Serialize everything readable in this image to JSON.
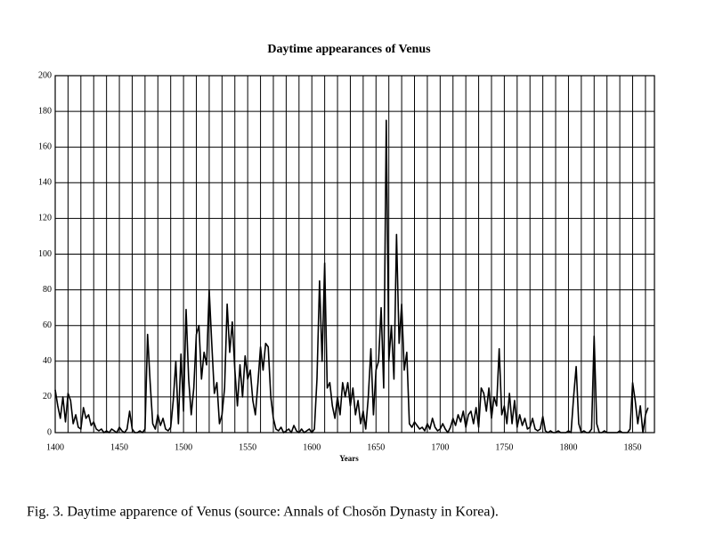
{
  "chart_data": {
    "type": "line",
    "title": "Daytime appearances of Venus",
    "x_label": "Years",
    "x": [
      1400,
      1402,
      1404,
      1406,
      1408,
      1410,
      1412,
      1414,
      1416,
      1418,
      1420,
      1422,
      1424,
      1426,
      1428,
      1430,
      1432,
      1434,
      1436,
      1438,
      1440,
      1442,
      1444,
      1446,
      1448,
      1450,
      1452,
      1454,
      1456,
      1458,
      1460,
      1462,
      1464,
      1466,
      1468,
      1470,
      1472,
      1474,
      1476,
      1478,
      1480,
      1482,
      1484,
      1486,
      1488,
      1490,
      1492,
      1494,
      1496,
      1498,
      1500,
      1502,
      1504,
      1506,
      1508,
      1510,
      1512,
      1514,
      1516,
      1518,
      1520,
      1522,
      1524,
      1526,
      1528,
      1530,
      1532,
      1534,
      1536,
      1538,
      1540,
      1542,
      1544,
      1546,
      1548,
      1550,
      1552,
      1554,
      1556,
      1558,
      1560,
      1562,
      1564,
      1566,
      1568,
      1570,
      1572,
      1574,
      1576,
      1578,
      1580,
      1582,
      1584,
      1586,
      1588,
      1590,
      1592,
      1594,
      1596,
      1598,
      1600,
      1602,
      1604,
      1606,
      1608,
      1610,
      1612,
      1614,
      1616,
      1618,
      1620,
      1622,
      1624,
      1626,
      1628,
      1630,
      1632,
      1634,
      1636,
      1638,
      1640,
      1642,
      1644,
      1646,
      1648,
      1650,
      1652,
      1654,
      1656,
      1658,
      1660,
      1662,
      1664,
      1666,
      1668,
      1670,
      1672,
      1674,
      1676,
      1678,
      1680,
      1682,
      1684,
      1686,
      1688,
      1690,
      1692,
      1694,
      1696,
      1698,
      1700,
      1702,
      1704,
      1706,
      1708,
      1710,
      1712,
      1714,
      1716,
      1718,
      1720,
      1722,
      1724,
      1726,
      1728,
      1730,
      1732,
      1734,
      1736,
      1738,
      1740,
      1742,
      1744,
      1746,
      1748,
      1750,
      1752,
      1754,
      1756,
      1758,
      1760,
      1762,
      1764,
      1766,
      1768,
      1770,
      1772,
      1774,
      1776,
      1778,
      1780,
      1782,
      1784,
      1786,
      1788,
      1790,
      1792,
      1794,
      1796,
      1798,
      1800,
      1802,
      1804,
      1806,
      1808,
      1810,
      1812,
      1814,
      1816,
      1818,
      1820,
      1822,
      1824,
      1826,
      1828,
      1830,
      1832,
      1834,
      1836,
      1838,
      1840,
      1842,
      1844,
      1846,
      1848,
      1850,
      1852,
      1854,
      1856,
      1858,
      1860,
      1862
    ],
    "values": [
      24,
      15,
      8,
      20,
      6,
      22,
      18,
      5,
      10,
      3,
      2,
      14,
      8,
      10,
      4,
      6,
      2,
      1,
      2,
      0,
      1,
      0,
      2,
      1,
      0,
      3,
      1,
      0,
      2,
      12,
      2,
      0,
      0,
      1,
      0,
      2,
      55,
      28,
      5,
      2,
      10,
      4,
      8,
      2,
      1,
      3,
      18,
      40,
      5,
      44,
      12,
      69,
      30,
      10,
      25,
      55,
      60,
      30,
      45,
      38,
      80,
      50,
      22,
      28,
      5,
      10,
      25,
      72,
      45,
      62,
      35,
      15,
      38,
      20,
      43,
      30,
      35,
      18,
      10,
      28,
      48,
      35,
      50,
      48,
      20,
      8,
      2,
      1,
      3,
      0,
      1,
      2,
      0,
      4,
      1,
      0,
      2,
      0,
      1,
      2,
      0,
      2,
      30,
      85,
      40,
      95,
      25,
      28,
      15,
      8,
      20,
      10,
      28,
      20,
      28,
      15,
      25,
      10,
      18,
      5,
      12,
      2,
      20,
      47,
      10,
      35,
      40,
      70,
      25,
      175,
      40,
      60,
      30,
      111,
      50,
      72,
      35,
      45,
      5,
      3,
      6,
      4,
      2,
      3,
      1,
      5,
      2,
      8,
      3,
      1,
      2,
      5,
      2,
      0,
      3,
      8,
      4,
      10,
      6,
      12,
      3,
      10,
      12,
      5,
      14,
      3,
      25,
      22,
      12,
      25,
      8,
      20,
      15,
      47,
      10,
      15,
      5,
      22,
      5,
      18,
      3,
      10,
      4,
      8,
      2,
      3,
      8,
      2,
      1,
      2,
      9,
      1,
      0,
      1,
      0,
      0,
      1,
      0,
      0,
      0,
      1,
      0,
      20,
      37,
      5,
      0,
      1,
      0,
      0,
      2,
      54,
      5,
      0,
      0,
      1,
      0,
      0,
      0,
      0,
      0,
      1,
      0,
      0,
      0,
      2,
      28,
      18,
      5,
      15,
      0,
      10,
      14
    ],
    "color": "#000000",
    "xlim": [
      1400,
      1867
    ],
    "ylim": [
      0,
      200
    ],
    "xticks": [
      1400,
      1450,
      1500,
      1550,
      1600,
      1650,
      1700,
      1750,
      1800,
      1850
    ],
    "x_minor_ticks": [
      1410,
      1420,
      1430,
      1440,
      1460,
      1470,
      1480,
      1490,
      1510,
      1520,
      1530,
      1540,
      1560,
      1570,
      1580,
      1590,
      1610,
      1620,
      1630,
      1640,
      1660,
      1670,
      1680,
      1690,
      1710,
      1720,
      1730,
      1740,
      1760,
      1770,
      1780,
      1790,
      1810,
      1820,
      1830,
      1840,
      1860
    ],
    "yticks": [
      0,
      20,
      40,
      60,
      80,
      100,
      120,
      140,
      160,
      180,
      200
    ],
    "grid": true
  },
  "caption": "Fig. 3. Daytime apparence of Venus (source: Annals of Chosŏn Dynasty in Korea)."
}
